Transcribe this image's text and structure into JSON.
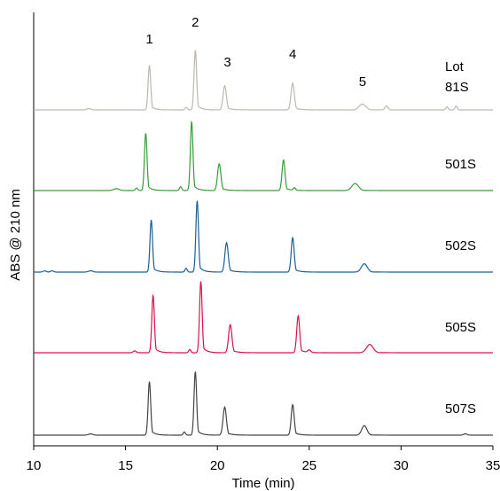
{
  "chart_data": {
    "type": "line",
    "title": "",
    "xlabel": "Time (min)",
    "ylabel": "ABS @ 210 nm",
    "xlim": [
      10,
      35
    ],
    "x_ticks": [
      "10",
      "15",
      "20",
      "25",
      "30",
      "35"
    ],
    "y_ticks": [],
    "grid": false,
    "legend": "none",
    "peak_labels": [
      {
        "text": "1",
        "x": 16.3
      },
      {
        "text": "2",
        "x": 18.8
      },
      {
        "text": "3",
        "x": 20.4
      },
      {
        "text": "4",
        "x": 24.1
      },
      {
        "text": "5",
        "x": 27.9
      }
    ],
    "series": [
      {
        "name": "Lot 81S",
        "label_lines": [
          "Lot",
          "81S"
        ],
        "color": "#bdb8b0",
        "peaks": [
          {
            "x": 13.0,
            "h": 0.02,
            "w": 0.12
          },
          {
            "x": 16.3,
            "h": 0.7,
            "w": 0.07
          },
          {
            "x": 18.3,
            "h": 0.04,
            "w": 0.06
          },
          {
            "x": 18.8,
            "h": 0.94,
            "w": 0.07
          },
          {
            "x": 20.4,
            "h": 0.38,
            "w": 0.09
          },
          {
            "x": 24.1,
            "h": 0.42,
            "w": 0.09
          },
          {
            "x": 27.9,
            "h": 0.09,
            "w": 0.18
          },
          {
            "x": 29.2,
            "h": 0.06,
            "w": 0.08
          },
          {
            "x": 32.5,
            "h": 0.05,
            "w": 0.06
          },
          {
            "x": 33.0,
            "h": 0.06,
            "w": 0.06
          }
        ]
      },
      {
        "name": "501S",
        "label_lines": [
          "501S"
        ],
        "color": "#3a9a3a",
        "peaks": [
          {
            "x": 14.5,
            "h": 0.03,
            "w": 0.15
          },
          {
            "x": 15.6,
            "h": 0.04,
            "w": 0.06
          },
          {
            "x": 16.1,
            "h": 0.9,
            "w": 0.07
          },
          {
            "x": 18.0,
            "h": 0.06,
            "w": 0.06
          },
          {
            "x": 18.6,
            "h": 1.08,
            "w": 0.07
          },
          {
            "x": 20.1,
            "h": 0.42,
            "w": 0.09
          },
          {
            "x": 23.6,
            "h": 0.48,
            "w": 0.08
          },
          {
            "x": 24.2,
            "h": 0.04,
            "w": 0.06
          },
          {
            "x": 27.5,
            "h": 0.11,
            "w": 0.18
          }
        ]
      },
      {
        "name": "502S",
        "label_lines": [
          "502S"
        ],
        "color": "#1f5f8f",
        "peaks": [
          {
            "x": 10.6,
            "h": 0.02,
            "w": 0.08
          },
          {
            "x": 11.0,
            "h": 0.02,
            "w": 0.08
          },
          {
            "x": 13.1,
            "h": 0.02,
            "w": 0.12
          },
          {
            "x": 16.4,
            "h": 0.82,
            "w": 0.07
          },
          {
            "x": 18.3,
            "h": 0.06,
            "w": 0.06
          },
          {
            "x": 18.9,
            "h": 1.12,
            "w": 0.07
          },
          {
            "x": 20.5,
            "h": 0.46,
            "w": 0.09
          },
          {
            "x": 24.1,
            "h": 0.54,
            "w": 0.08
          },
          {
            "x": 28.0,
            "h": 0.13,
            "w": 0.16
          }
        ]
      },
      {
        "name": "505S",
        "label_lines": [
          "505S"
        ],
        "color": "#d8134a",
        "peaks": [
          {
            "x": 15.5,
            "h": 0.03,
            "w": 0.08
          },
          {
            "x": 16.5,
            "h": 0.9,
            "w": 0.07
          },
          {
            "x": 18.5,
            "h": 0.05,
            "w": 0.06
          },
          {
            "x": 19.1,
            "h": 1.12,
            "w": 0.07
          },
          {
            "x": 20.7,
            "h": 0.44,
            "w": 0.09
          },
          {
            "x": 24.4,
            "h": 0.58,
            "w": 0.08
          },
          {
            "x": 25.0,
            "h": 0.04,
            "w": 0.08
          },
          {
            "x": 28.3,
            "h": 0.13,
            "w": 0.18
          }
        ]
      },
      {
        "name": "507S",
        "label_lines": [
          "507S"
        ],
        "color": "#444444",
        "peaks": [
          {
            "x": 13.1,
            "h": 0.02,
            "w": 0.12
          },
          {
            "x": 16.3,
            "h": 0.84,
            "w": 0.07
          },
          {
            "x": 18.2,
            "h": 0.05,
            "w": 0.06
          },
          {
            "x": 18.8,
            "h": 1.0,
            "w": 0.07
          },
          {
            "x": 20.4,
            "h": 0.44,
            "w": 0.09
          },
          {
            "x": 24.1,
            "h": 0.48,
            "w": 0.08
          },
          {
            "x": 28.0,
            "h": 0.15,
            "w": 0.14
          },
          {
            "x": 33.5,
            "h": 0.02,
            "w": 0.1
          }
        ]
      }
    ]
  }
}
